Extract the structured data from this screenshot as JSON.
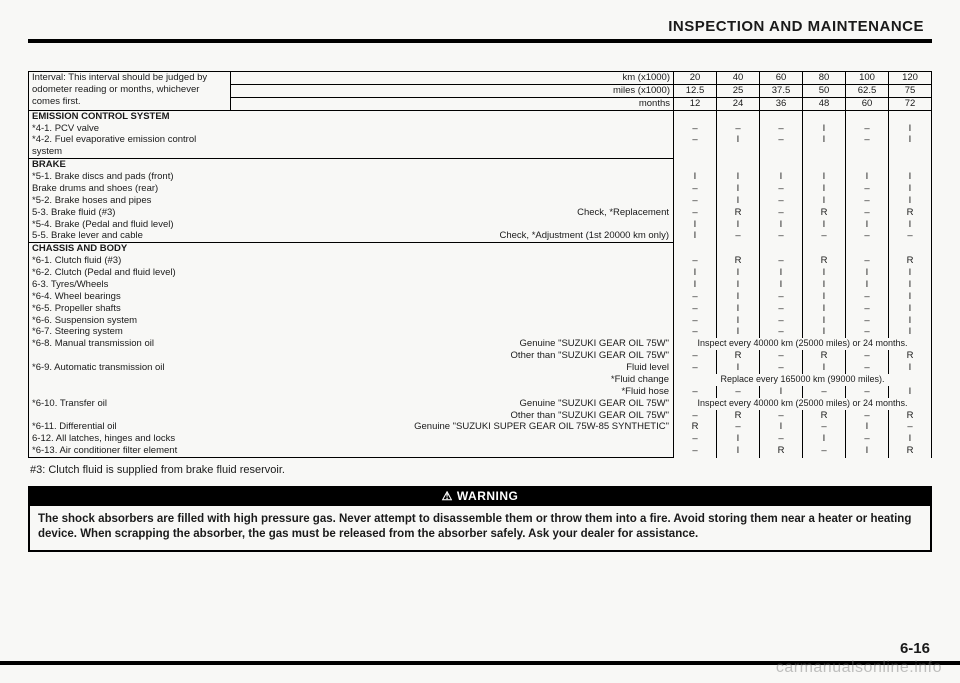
{
  "header": {
    "title": "INSPECTION AND MAINTENANCE"
  },
  "interval_block": {
    "line1": "Interval: This interval should be judged by",
    "line2": "odometer reading or months, whichever",
    "line3": "comes first.",
    "row_labels": {
      "km": "km (x1000)",
      "miles": "miles (x1000)",
      "months": "months"
    },
    "km": [
      "20",
      "40",
      "60",
      "80",
      "100",
      "120"
    ],
    "miles": [
      "12.5",
      "25",
      "37.5",
      "50",
      "62.5",
      "75"
    ],
    "months": [
      "12",
      "24",
      "36",
      "48",
      "60",
      "72"
    ]
  },
  "sections": {
    "emission": {
      "title": "EMISSION CONTROL SYSTEM",
      "rows": [
        {
          "label": "*4-1. PCV valve",
          "vals": [
            "–",
            "–",
            "–",
            "I",
            "–",
            "I"
          ]
        },
        {
          "label": "*4-2. Fuel evaporative emission control system",
          "vals": [
            "–",
            "I",
            "–",
            "I",
            "–",
            "I"
          ]
        }
      ]
    },
    "brake": {
      "title": "BRAKE",
      "rows": [
        {
          "label": "*5-1. Brake discs and pads (front)",
          "vals": [
            "I",
            "I",
            "I",
            "I",
            "I",
            "I"
          ]
        },
        {
          "label": "Brake drums and shoes (rear)",
          "indent": 2,
          "vals": [
            "–",
            "I",
            "–",
            "I",
            "–",
            "I"
          ]
        },
        {
          "label": "*5-2. Brake hoses and pipes",
          "vals": [
            "–",
            "I",
            "–",
            "I",
            "–",
            "I"
          ]
        },
        {
          "label": "5-3. Brake fluid (#3)",
          "mid": "Check, *Replacement",
          "vals": [
            "–",
            "R",
            "–",
            "R",
            "–",
            "R"
          ]
        },
        {
          "label": "*5-4. Brake (Pedal and fluid level)",
          "vals": [
            "I",
            "I",
            "I",
            "I",
            "I",
            "I"
          ]
        },
        {
          "label": "5-5. Brake lever and cable",
          "mid": "Check, *Adjustment (1st 20000 km only)",
          "vals": [
            "I",
            "–",
            "–",
            "–",
            "–",
            "–"
          ]
        }
      ]
    },
    "chassis": {
      "title": "CHASSIS AND BODY",
      "rows": [
        {
          "label": "*6-1. Clutch fluid (#3)",
          "vals": [
            "–",
            "R",
            "–",
            "R",
            "–",
            "R"
          ]
        },
        {
          "label": "*6-2. Clutch (Pedal and fluid level)",
          "vals": [
            "I",
            "I",
            "I",
            "I",
            "I",
            "I"
          ]
        },
        {
          "label": "6-3. Tyres/Wheels",
          "vals": [
            "I",
            "I",
            "I",
            "I",
            "I",
            "I"
          ]
        },
        {
          "label": "*6-4. Wheel bearings",
          "vals": [
            "–",
            "I",
            "–",
            "I",
            "–",
            "I"
          ]
        },
        {
          "label": "*6-5. Propeller shafts",
          "vals": [
            "–",
            "I",
            "–",
            "I",
            "–",
            "I"
          ]
        },
        {
          "label": "*6-6. Suspension system",
          "vals": [
            "–",
            "I",
            "–",
            "I",
            "–",
            "I"
          ]
        },
        {
          "label": "*6-7. Steering system",
          "vals": [
            "–",
            "I",
            "–",
            "I",
            "–",
            "I"
          ]
        },
        {
          "label": "*6-8. Manual transmission oil",
          "mid": "Genuine \"SUZUKI GEAR OIL 75W\"",
          "span": "Inspect every 40000 km (25000 miles) or 24 months."
        },
        {
          "label": "",
          "mid": "Other than \"SUZUKI GEAR OIL 75W\"",
          "vals": [
            "–",
            "R",
            "–",
            "R",
            "–",
            "R"
          ]
        },
        {
          "label": "*6-9. Automatic transmission oil",
          "mid": "Fluid level",
          "vals": [
            "–",
            "I",
            "–",
            "I",
            "–",
            "I"
          ]
        },
        {
          "label": "",
          "mid": "*Fluid change",
          "span": "Replace every 165000 km (99000 miles)."
        },
        {
          "label": "",
          "mid": "*Fluid hose",
          "vals": [
            "–",
            "–",
            "I",
            "–",
            "–",
            "I"
          ]
        },
        {
          "label": "*6-10. Transfer oil",
          "mid": "Genuine \"SUZUKI GEAR OIL 75W\"",
          "span": "Inspect every 40000 km (25000 miles) or 24 months."
        },
        {
          "label": "",
          "mid": "Other than \"SUZUKI GEAR OIL 75W\"",
          "vals": [
            "–",
            "R",
            "–",
            "R",
            "–",
            "R"
          ]
        },
        {
          "label": "*6-11. Differential oil",
          "mid": "Genuine \"SUZUKI SUPER GEAR OIL 75W-85 SYNTHETIC\"",
          "vals": [
            "R",
            "–",
            "I",
            "–",
            "I",
            "–"
          ]
        },
        {
          "label": "6-12. All latches, hinges and locks",
          "vals": [
            "–",
            "I",
            "–",
            "I",
            "–",
            "I"
          ]
        },
        {
          "label": "*6-13. Air conditioner filter element",
          "vals": [
            "–",
            "I",
            "R",
            "–",
            "I",
            "R"
          ]
        }
      ]
    }
  },
  "footnote": "#3: Clutch fluid is supplied from brake fluid reservoir.",
  "warning": {
    "bar": "WARNING",
    "text": "The shock absorbers are filled with high pressure gas. Never attempt to disassemble them or throw them into a fire. Avoid storing them near a heater or heating device. When scrapping the absorber, the gas must be released from the absorber safely. Ask your dealer for assistance."
  },
  "pagenum": "6-16",
  "watermark": "carmanualsonline.info"
}
